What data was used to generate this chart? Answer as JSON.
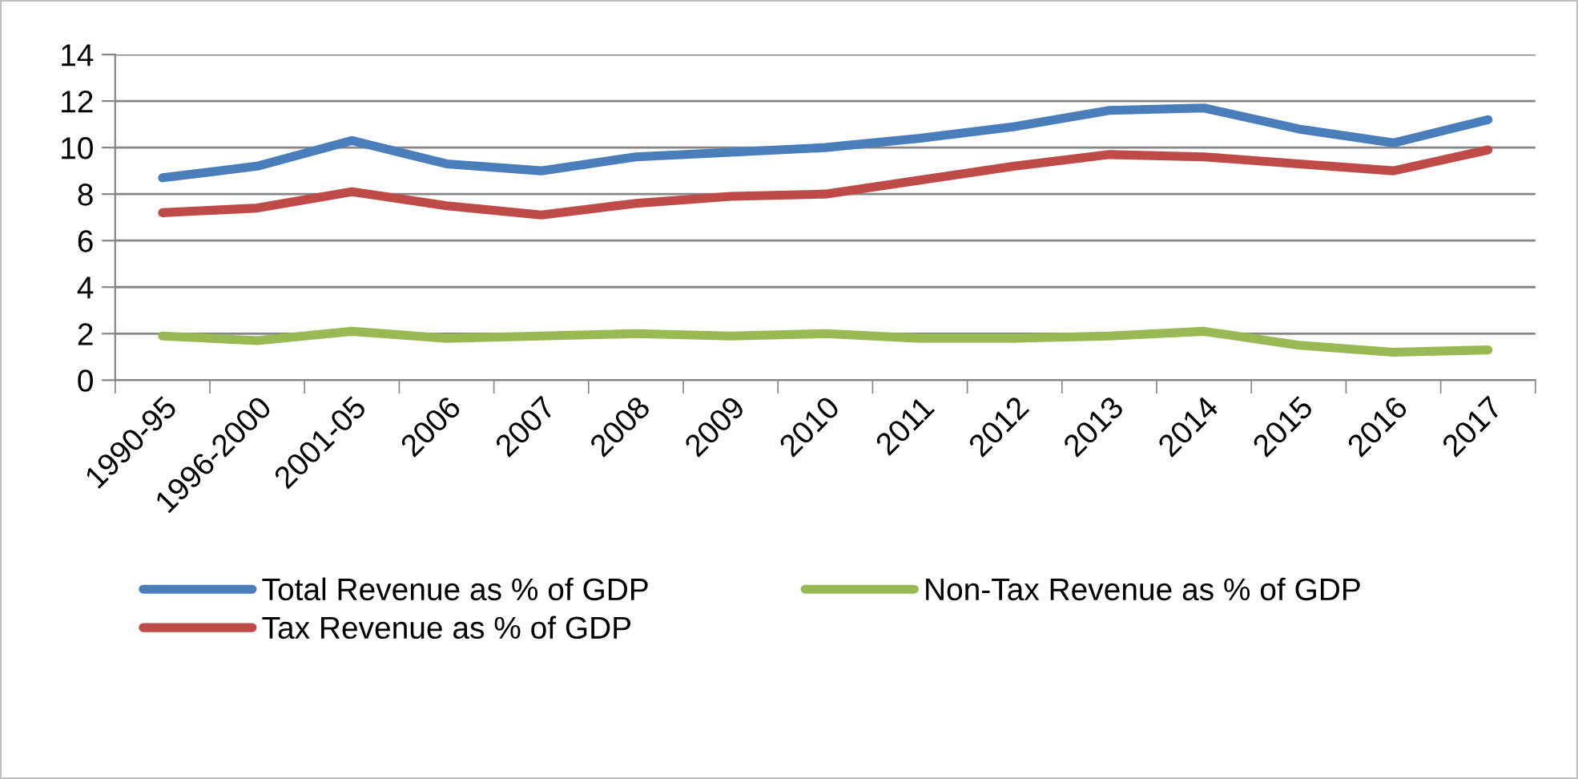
{
  "chart_data": {
    "type": "line",
    "categories": [
      "1990-95",
      "1996-2000",
      "2001-05",
      "2006",
      "2007",
      "2008",
      "2009",
      "2010",
      "2011",
      "2012",
      "2013",
      "2014",
      "2015",
      "2016",
      "2017"
    ],
    "series": [
      {
        "name": "Total Revenue as % of GDP",
        "color": "#4a7ebb",
        "values": [
          8.7,
          9.2,
          10.3,
          9.3,
          9.0,
          9.6,
          9.8,
          10.0,
          10.4,
          10.9,
          11.6,
          11.7,
          10.8,
          10.2,
          11.2
        ]
      },
      {
        "name": "Tax Revenue as % of GDP",
        "color": "#be4b48",
        "values": [
          7.2,
          7.4,
          8.1,
          7.5,
          7.1,
          7.6,
          7.9,
          8.0,
          8.6,
          9.2,
          9.7,
          9.6,
          9.3,
          9.0,
          9.9
        ]
      },
      {
        "name": "Non-Tax Revenue as % of GDP",
        "color": "#98b954",
        "values": [
          1.9,
          1.7,
          2.1,
          1.8,
          1.9,
          2.0,
          1.9,
          2.0,
          1.8,
          1.8,
          1.9,
          2.1,
          1.5,
          1.2,
          1.3
        ]
      }
    ],
    "ylim": [
      0,
      14
    ],
    "yticks": [
      0,
      2,
      4,
      6,
      8,
      10,
      12,
      14
    ],
    "grid": "y",
    "legend": "bottom",
    "marker": "none",
    "line_style": "solid"
  }
}
